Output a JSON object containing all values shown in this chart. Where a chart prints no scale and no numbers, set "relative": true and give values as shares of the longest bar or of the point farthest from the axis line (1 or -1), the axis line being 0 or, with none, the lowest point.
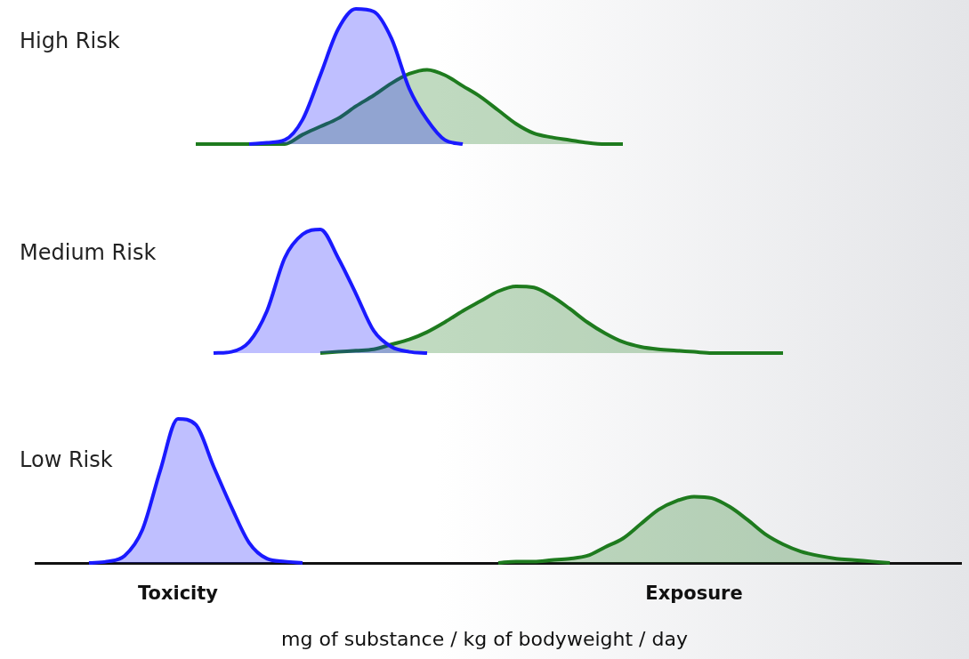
{
  "chart_data": [
    {
      "type": "area",
      "title": "High Risk",
      "relative": true,
      "tick_labels": false,
      "grid": false,
      "legend": false,
      "categories": [
        null,
        null,
        null,
        null,
        null,
        null,
        null,
        null,
        null,
        null,
        null,
        null,
        null,
        null,
        null,
        null,
        null,
        null,
        null,
        null,
        null,
        null,
        null,
        null,
        null,
        null,
        null,
        null,
        null,
        null,
        null,
        null,
        null,
        null,
        null,
        null,
        null,
        null,
        null,
        null,
        null,
        null,
        null,
        null,
        null,
        null,
        null,
        null,
        null,
        null,
        null,
        null,
        null
      ],
      "series": [
        {
          "color": "#1a1aff",
          "values": [
            null,
            null,
            null,
            null,
            null,
            null,
            null,
            null,
            null,
            null,
            null,
            null,
            0,
            0.01,
            0.03,
            0.18,
            0.51,
            0.85,
            1,
            0.98,
            0.78,
            0.41,
            0.18,
            0.03,
            0,
            null,
            null,
            null,
            null,
            null,
            null,
            null,
            null,
            null,
            null,
            null,
            null,
            null,
            null,
            null,
            null,
            null,
            null,
            null,
            null,
            null,
            null,
            null,
            null,
            null,
            null,
            null,
            null
          ]
        },
        {
          "color": "#1e7b1e",
          "values": [
            null,
            null,
            null,
            null,
            null,
            null,
            null,
            null,
            null,
            0,
            0,
            0,
            0,
            0,
            0,
            0.07,
            0.13,
            0.19,
            0.28,
            0.36,
            0.45,
            0.52,
            0.55,
            0.51,
            0.43,
            0.35,
            0.25,
            0.15,
            0.08,
            0.05,
            0.03,
            0.01,
            0,
            0,
            null,
            null,
            null,
            null,
            null,
            null,
            null,
            null,
            null,
            null,
            null,
            null,
            null,
            null,
            null,
            null,
            null,
            null,
            null
          ]
        }
      ]
    },
    {
      "type": "area",
      "title": "Medium Risk",
      "relative": true,
      "tick_labels": false,
      "grid": false,
      "legend": false,
      "categories": [
        null,
        null,
        null,
        null,
        null,
        null,
        null,
        null,
        null,
        null,
        null,
        null,
        null,
        null,
        null,
        null,
        null,
        null,
        null,
        null,
        null,
        null,
        null,
        null,
        null,
        null,
        null,
        null,
        null,
        null,
        null,
        null,
        null,
        null,
        null,
        null,
        null,
        null,
        null,
        null,
        null,
        null,
        null,
        null,
        null,
        null,
        null,
        null,
        null,
        null,
        null,
        null,
        null
      ],
      "series": [
        {
          "color": "#1a1aff",
          "values": [
            null,
            null,
            null,
            null,
            null,
            null,
            null,
            null,
            null,
            null,
            0,
            0.01,
            0.09,
            0.34,
            0.77,
            0.96,
            1,
            0.77,
            0.48,
            0.18,
            0.05,
            0.01,
            0,
            null,
            null,
            null,
            null,
            null,
            null,
            null,
            null,
            null,
            null,
            null,
            null,
            null,
            null,
            null,
            null,
            null,
            null,
            null,
            null,
            null,
            null,
            null,
            null,
            null,
            null,
            null,
            null,
            null,
            null
          ]
        },
        {
          "color": "#1e7b1e",
          "values": [
            null,
            null,
            null,
            null,
            null,
            null,
            null,
            null,
            null,
            null,
            null,
            null,
            null,
            null,
            null,
            null,
            0,
            0.01,
            0.02,
            0.03,
            0.07,
            0.11,
            0.17,
            0.25,
            0.34,
            0.42,
            0.5,
            0.54,
            0.53,
            0.46,
            0.36,
            0.25,
            0.16,
            0.09,
            0.05,
            0.03,
            0.02,
            0.01,
            0,
            0,
            0,
            0,
            0,
            null,
            null,
            null,
            null,
            null,
            null,
            null,
            null,
            null,
            null
          ]
        }
      ]
    },
    {
      "type": "area",
      "title": "Low Risk",
      "relative": true,
      "tick_labels": false,
      "grid": false,
      "legend": false,
      "xlabel": "mg of substance / kg of bodyweight / day",
      "annotations": [
        "Toxicity",
        "Exposure"
      ],
      "categories": [
        null,
        null,
        null,
        null,
        null,
        null,
        null,
        null,
        null,
        null,
        null,
        null,
        null,
        null,
        null,
        null,
        null,
        null,
        null,
        null,
        null,
        null,
        null,
        null,
        null,
        null,
        null,
        null,
        null,
        null,
        null,
        null,
        null,
        null,
        null,
        null,
        null,
        null,
        null,
        null,
        null,
        null,
        null,
        null,
        null,
        null,
        null,
        null,
        null,
        null,
        null,
        null,
        null
      ],
      "series": [
        {
          "color": "#1a1aff",
          "values": [
            null,
            null,
            null,
            0,
            0.01,
            0.05,
            0.23,
            0.64,
            1,
            0.96,
            0.67,
            0.39,
            0.14,
            0.03,
            0.01,
            0,
            null,
            null,
            null,
            null,
            null,
            null,
            null,
            null,
            null,
            null,
            null,
            null,
            null,
            null,
            null,
            null,
            null,
            null,
            null,
            null,
            null,
            null,
            null,
            null,
            null,
            null,
            null,
            null,
            null,
            null,
            null,
            null,
            null,
            null,
            null,
            null,
            null
          ]
        },
        {
          "color": "#1e7b1e",
          "values": [
            null,
            null,
            null,
            null,
            null,
            null,
            null,
            null,
            null,
            null,
            null,
            null,
            null,
            null,
            null,
            null,
            null,
            null,
            null,
            null,
            null,
            null,
            null,
            null,
            null,
            null,
            0,
            0.01,
            0.01,
            0.02,
            0.03,
            0.05,
            0.11,
            0.17,
            0.27,
            0.37,
            0.43,
            0.46,
            0.45,
            0.39,
            0.3,
            0.2,
            0.13,
            0.08,
            0.05,
            0.03,
            0.02,
            0.01,
            0,
            null,
            null,
            null,
            null
          ]
        }
      ]
    }
  ]
}
